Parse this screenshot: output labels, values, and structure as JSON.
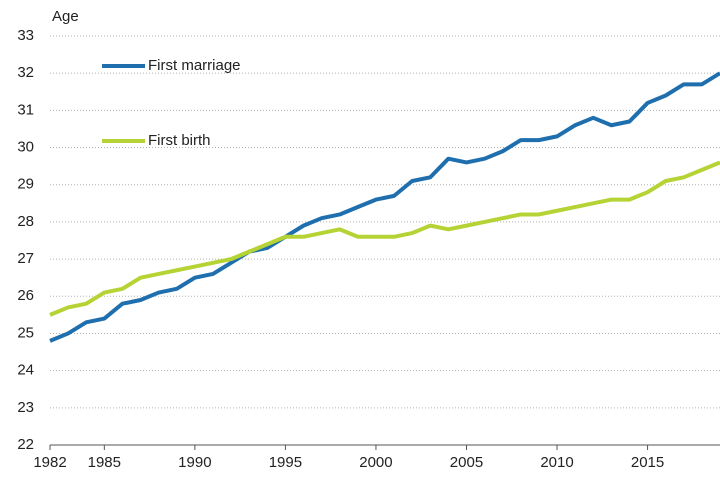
{
  "chart_data": {
    "type": "line",
    "y_axis_label": "Age",
    "x": [
      1982,
      1983,
      1984,
      1985,
      1986,
      1987,
      1988,
      1989,
      1990,
      1991,
      1992,
      1993,
      1994,
      1995,
      1996,
      1997,
      1998,
      1999,
      2000,
      2001,
      2002,
      2003,
      2004,
      2005,
      2006,
      2007,
      2008,
      2009,
      2010,
      2011,
      2012,
      2013,
      2014,
      2015,
      2016,
      2017,
      2018,
      2019
    ],
    "series": [
      {
        "name": "First marriage",
        "color": "#1f6fae",
        "values": [
          24.8,
          25.0,
          25.3,
          25.4,
          25.8,
          25.9,
          26.1,
          26.2,
          26.5,
          26.6,
          26.9,
          27.2,
          27.3,
          27.6,
          27.9,
          28.1,
          28.2,
          28.4,
          28.6,
          28.7,
          29.1,
          29.2,
          29.7,
          29.6,
          29.7,
          29.9,
          30.2,
          30.2,
          30.3,
          30.6,
          30.8,
          30.6,
          30.7,
          31.2,
          31.4,
          31.7,
          31.7,
          32.0
        ]
      },
      {
        "name": "First birth",
        "color": "#b5d334",
        "values": [
          25.5,
          25.7,
          25.8,
          26.1,
          26.2,
          26.5,
          26.6,
          26.7,
          26.8,
          26.9,
          27.0,
          27.2,
          27.4,
          27.6,
          27.6,
          27.7,
          27.8,
          27.6,
          27.6,
          27.6,
          27.7,
          27.9,
          27.8,
          27.9,
          28.0,
          28.1,
          28.2,
          28.2,
          28.3,
          28.4,
          28.5,
          28.6,
          28.6,
          28.8,
          29.1,
          29.2,
          29.4,
          29.6
        ]
      }
    ],
    "xlim": [
      1982,
      2019
    ],
    "xticks": [
      1982,
      1985,
      1990,
      1995,
      2000,
      2005,
      2010,
      2015
    ],
    "ylim": [
      22,
      33
    ],
    "yticks": [
      22,
      23,
      24,
      25,
      26,
      27,
      28,
      29,
      30,
      31,
      32,
      33
    ],
    "grid": true,
    "legend": "upper left"
  }
}
